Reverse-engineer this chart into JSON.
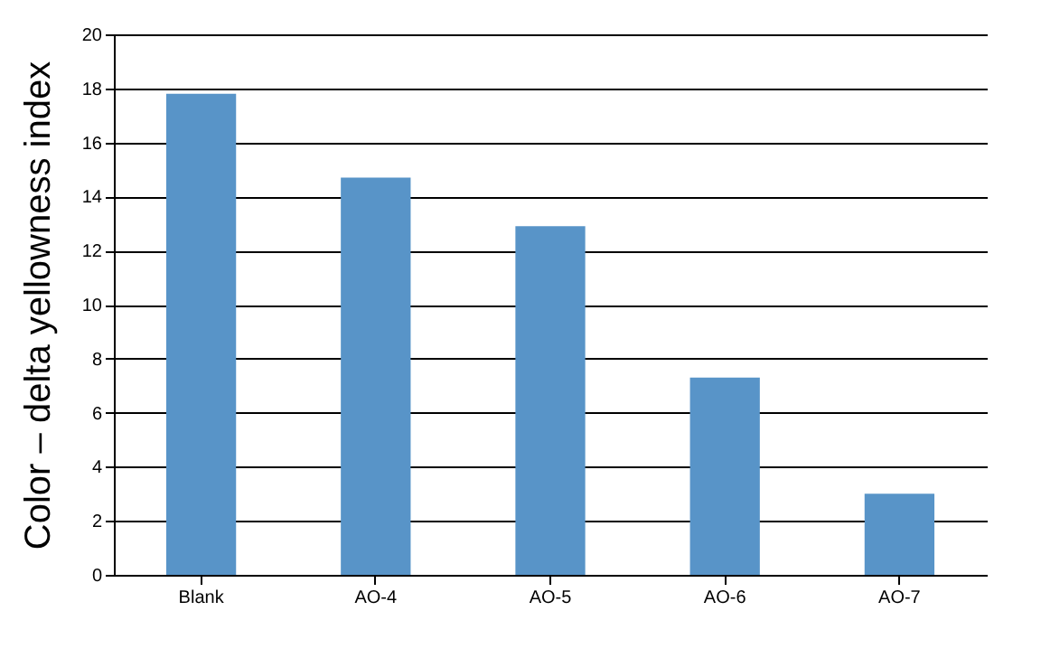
{
  "chart_data": {
    "type": "bar",
    "ylabel": "Color – delta yellowness index",
    "categories": [
      "Blank",
      "AO-4",
      "AO-5",
      "AO-6",
      "AO-7"
    ],
    "values": [
      17.8,
      14.7,
      12.9,
      7.3,
      3.0
    ],
    "color": "#5894c8",
    "ylim": [
      0,
      20
    ],
    "yticks": [
      0,
      2,
      4,
      6,
      8,
      10,
      12,
      14,
      16,
      18,
      20
    ],
    "grid": "y"
  }
}
